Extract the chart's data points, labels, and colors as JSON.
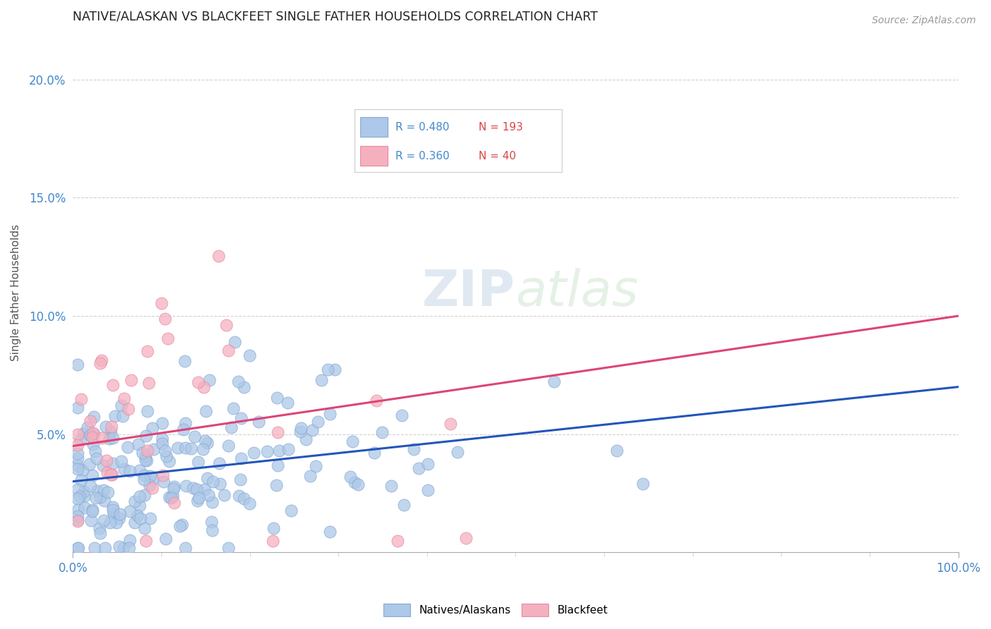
{
  "title": "NATIVE/ALASKAN VS BLACKFEET SINGLE FATHER HOUSEHOLDS CORRELATION CHART",
  "source": "Source: ZipAtlas.com",
  "ylabel": "Single Father Households",
  "xlim": [
    0,
    100
  ],
  "ylim": [
    0,
    22
  ],
  "yticks": [
    5,
    10,
    15,
    20
  ],
  "ytick_labels": [
    "5.0%",
    "10.0%",
    "15.0%",
    "20.0%"
  ],
  "xtick_labels": [
    "0.0%",
    "100.0%"
  ],
  "blue_R": 0.48,
  "blue_N": 193,
  "pink_R": 0.36,
  "pink_N": 40,
  "blue_color": "#adc8e8",
  "pink_color": "#f5b0c0",
  "blue_edge": "#85aad4",
  "pink_edge": "#e88aa0",
  "trend_blue": "#2255bb",
  "trend_pink": "#dd4477",
  "title_color": "#222222",
  "axis_color": "#4488cc",
  "legend_R_color": "#4488cc",
  "legend_N_color": "#dd4444",
  "watermark_color": "#d8e8f0",
  "background": "#ffffff",
  "grid_color": "#cccccc",
  "blue_trend_start_y": 3.0,
  "blue_trend_end_y": 7.0,
  "pink_trend_start_y": 4.5,
  "pink_trend_end_y": 10.0
}
